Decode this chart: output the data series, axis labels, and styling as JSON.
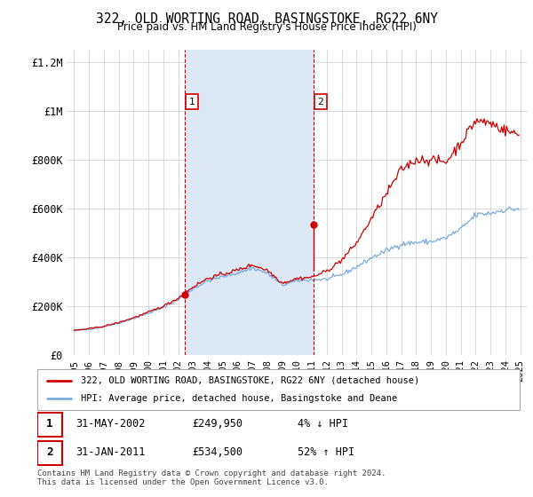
{
  "title": "322, OLD WORTING ROAD, BASINGSTOKE, RG22 6NY",
  "subtitle": "Price paid vs. HM Land Registry's House Price Index (HPI)",
  "red_label": "322, OLD WORTING ROAD, BASINGSTOKE, RG22 6NY (detached house)",
  "blue_label": "HPI: Average price, detached house, Basingstoke and Deane",
  "annotation1": {
    "num": "1",
    "date": "31-MAY-2002",
    "price": "£249,950",
    "pct": "4% ↓ HPI"
  },
  "annotation2": {
    "num": "2",
    "date": "31-JAN-2011",
    "price": "£534,500",
    "pct": "52% ↑ HPI"
  },
  "footer": "Contains HM Land Registry data © Crown copyright and database right 2024.\nThis data is licensed under the Open Government Licence v3.0.",
  "shaded_color": "#dce9f5",
  "red_line_color": "#cc0000",
  "blue_line_color": "#7aabdb",
  "vline_color": "#cc0000",
  "vline1_x": 2002.42,
  "vline2_x": 2011.08,
  "ylim_min": 0,
  "ylim_max": 1250000,
  "xlim_min": 1994.5,
  "xlim_max": 2025.5,
  "yticks": [
    0,
    200000,
    400000,
    600000,
    800000,
    1000000,
    1200000
  ],
  "ytick_labels": [
    "£0",
    "£200K",
    "£400K",
    "£600K",
    "£800K",
    "£1M",
    "£1.2M"
  ],
  "xticks": [
    1995,
    1996,
    1997,
    1998,
    1999,
    2000,
    2001,
    2002,
    2003,
    2004,
    2005,
    2006,
    2007,
    2008,
    2009,
    2010,
    2011,
    2012,
    2013,
    2014,
    2015,
    2016,
    2017,
    2018,
    2019,
    2020,
    2021,
    2022,
    2023,
    2024,
    2025
  ],
  "sale1_x": 2002.42,
  "sale1_y": 249950,
  "sale2_x": 2011.08,
  "sale2_y": 534500,
  "sale2_hpi_y": 351000
}
